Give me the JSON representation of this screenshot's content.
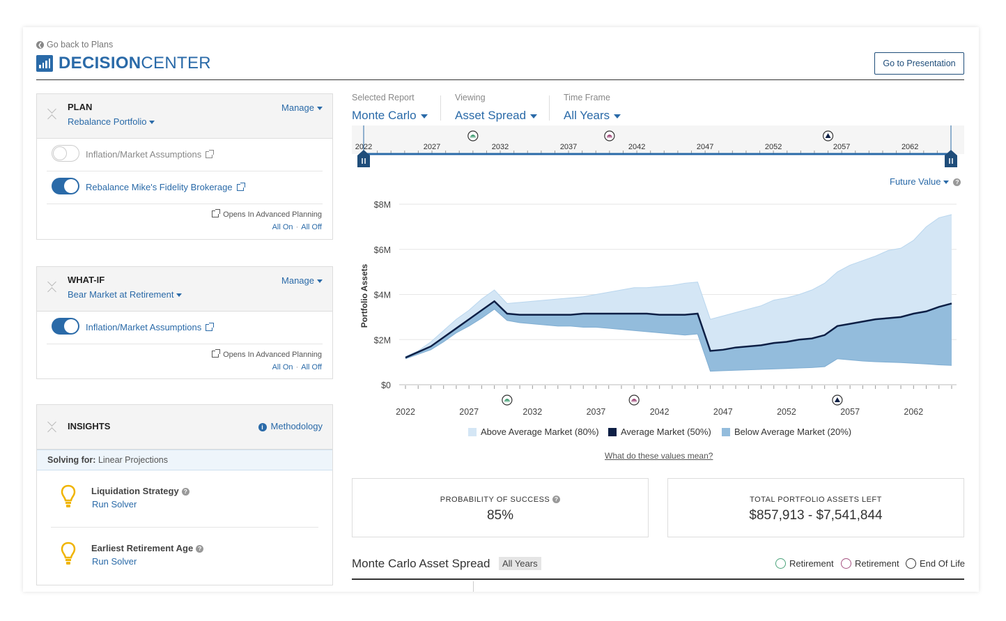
{
  "header": {
    "back_label": "Go back to Plans",
    "brand_bold": "DECISION",
    "brand_light": "CENTER",
    "presentation_button": "Go to Presentation"
  },
  "plan_panel": {
    "title": "PLAN",
    "selected": "Rebalance Portfolio",
    "manage": "Manage",
    "toggles": [
      {
        "label": "Inflation/Market Assumptions",
        "on": false
      },
      {
        "label": "Rebalance Mike's Fidelity Brokerage",
        "on": true
      }
    ],
    "opens_label": "Opens In Advanced Planning",
    "all_on": "All On",
    "all_off": "All Off"
  },
  "whatif_panel": {
    "title": "WHAT-IF",
    "selected": "Bear Market at Retirement",
    "manage": "Manage",
    "toggles": [
      {
        "label": "Inflation/Market Assumptions",
        "on": true
      }
    ],
    "opens_label": "Opens In Advanced Planning",
    "all_on": "All On",
    "all_off": "All Off"
  },
  "insights_panel": {
    "title": "INSIGHTS",
    "methodology": "Methodology",
    "solving_for_label": "Solving for:",
    "solving_for_value": "Linear Projections",
    "items": [
      {
        "title": "Liquidation Strategy",
        "action": "Run Solver"
      },
      {
        "title": "Earliest Retirement Age",
        "action": "Run Solver"
      }
    ]
  },
  "selectors": {
    "report_label": "Selected Report",
    "report_value": "Monte Carlo",
    "viewing_label": "Viewing",
    "viewing_value": "Asset Spread",
    "timeframe_label": "Time Frame",
    "timeframe_value": "All Years"
  },
  "timeline": {
    "ticks": [
      "2022",
      "2027",
      "2032",
      "2037",
      "2042",
      "2047",
      "2052",
      "2057",
      "2062"
    ]
  },
  "value_mode": "Future Value",
  "colors": {
    "above": "#d4e6f5",
    "average": "#0d1f45",
    "below": "#93bcdc",
    "brand": "#2a6aa8",
    "retirement1": "#4aa37a",
    "retirement2": "#a4507f"
  },
  "chart_data": {
    "type": "area",
    "ylabel": "Portfolio Assets",
    "ylim": [
      0,
      8000000
    ],
    "y_ticks": [
      "$0",
      "$2M",
      "$4M",
      "$6M",
      "$8M"
    ],
    "x_ticks": [
      "2022",
      "2027",
      "2032",
      "2037",
      "2042",
      "2047",
      "2052",
      "2057",
      "2062"
    ],
    "x": [
      2022,
      2023,
      2024,
      2025,
      2026,
      2027,
      2028,
      2029,
      2030,
      2031,
      2032,
      2033,
      2034,
      2035,
      2036,
      2037,
      2038,
      2039,
      2040,
      2041,
      2042,
      2043,
      2044,
      2045,
      2046,
      2047,
      2048,
      2049,
      2050,
      2051,
      2052,
      2053,
      2054,
      2055,
      2056,
      2057,
      2058,
      2059,
      2060,
      2061,
      2062,
      2063,
      2064,
      2065
    ],
    "series": [
      {
        "name": "Above Average Market (80%)",
        "values": [
          1250000,
          1500000,
          1900000,
          2400000,
          2900000,
          3300000,
          3800000,
          4200000,
          3600000,
          3650000,
          3700000,
          3750000,
          3800000,
          3850000,
          3900000,
          4000000,
          4100000,
          4200000,
          4300000,
          4300000,
          4350000,
          4400000,
          4500000,
          4550000,
          2900000,
          3050000,
          3200000,
          3350000,
          3500000,
          3750000,
          3850000,
          4000000,
          4200000,
          4500000,
          5000000,
          5300000,
          5500000,
          5700000,
          5950000,
          6050000,
          6400000,
          7000000,
          7400000,
          7541844
        ]
      },
      {
        "name": "Average Market (50%)",
        "values": [
          1200000,
          1450000,
          1700000,
          2100000,
          2500000,
          2900000,
          3300000,
          3700000,
          3150000,
          3100000,
          3100000,
          3100000,
          3100000,
          3100000,
          3150000,
          3150000,
          3150000,
          3150000,
          3150000,
          3150000,
          3100000,
          3100000,
          3100000,
          3150000,
          1500000,
          1550000,
          1650000,
          1700000,
          1750000,
          1850000,
          1900000,
          2000000,
          2050000,
          2200000,
          2600000,
          2700000,
          2800000,
          2900000,
          2950000,
          3000000,
          3150000,
          3250000,
          3450000,
          3600000
        ]
      },
      {
        "name": "Below Average Market (20%)",
        "values": [
          1150000,
          1350000,
          1550000,
          1900000,
          2300000,
          2600000,
          2950000,
          3350000,
          2850000,
          2750000,
          2700000,
          2650000,
          2600000,
          2600000,
          2550000,
          2550000,
          2500000,
          2450000,
          2400000,
          2350000,
          2300000,
          2250000,
          2200000,
          2250000,
          600000,
          620000,
          640000,
          660000,
          680000,
          700000,
          720000,
          740000,
          760000,
          800000,
          1150000,
          1100000,
          1050000,
          1020000,
          1000000,
          980000,
          950000,
          920000,
          880000,
          857913
        ]
      }
    ],
    "markers": [
      {
        "label": "Retirement",
        "x": 2030,
        "color": "#4aa37a"
      },
      {
        "label": "Retirement",
        "x": 2040,
        "color": "#a4507f"
      },
      {
        "label": "End Of Life",
        "x": 2056,
        "color": "#0d1f45"
      }
    ],
    "legend": [
      "Above Average Market (80%)",
      "Average Market (50%)",
      "Below Average Market (20%)"
    ],
    "legend_position": "bottom"
  },
  "values_link": "What do these values mean?",
  "stats": [
    {
      "title": "PROBABILITY OF SUCCESS",
      "value": "85%"
    },
    {
      "title": "TOTAL PORTFOLIO ASSETS LEFT",
      "value": "$857,913 - $7,541,844"
    }
  ],
  "bottom": {
    "title": "Monte Carlo Asset Spread",
    "tag": "All Years",
    "legend": [
      "Retirement",
      "Retirement",
      "End Of Life"
    ]
  }
}
